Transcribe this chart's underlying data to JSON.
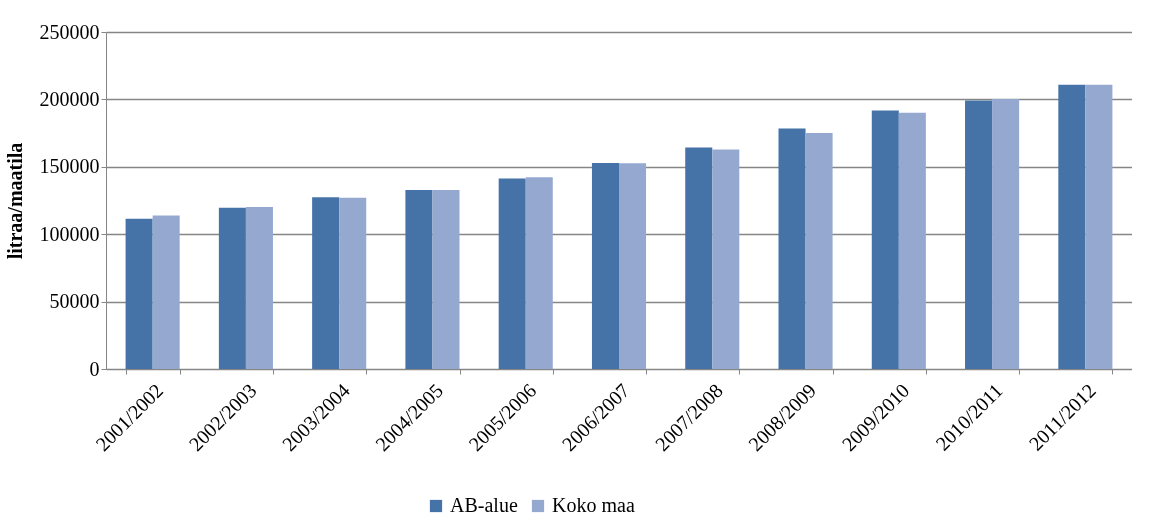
{
  "chart_data": {
    "type": "bar",
    "ylabel": "litraa/maatila",
    "categories": [
      "2001/2002",
      "2002/2003",
      "2003/2004",
      "2004/2005",
      "2005/2006",
      "2006/2007",
      "2007/2008",
      "2008/2009",
      "2009/2010",
      "2010/2011",
      "2011/2012"
    ],
    "series": [
      {
        "name": "AB-alue",
        "color": "#4573a8",
        "values": [
          111400,
          119600,
          127500,
          132700,
          141400,
          152900,
          164300,
          178500,
          191700,
          199200,
          210900
        ]
      },
      {
        "name": "Koko maa",
        "color": "#95a9d0",
        "values": [
          113900,
          120100,
          127000,
          132700,
          142200,
          152600,
          162800,
          175100,
          190100,
          200300,
          210900
        ]
      }
    ],
    "ylim": [
      0,
      250000
    ],
    "yticks": [
      0,
      50000,
      100000,
      150000,
      200000,
      250000
    ],
    "grid": "y",
    "legend": "bottom"
  }
}
